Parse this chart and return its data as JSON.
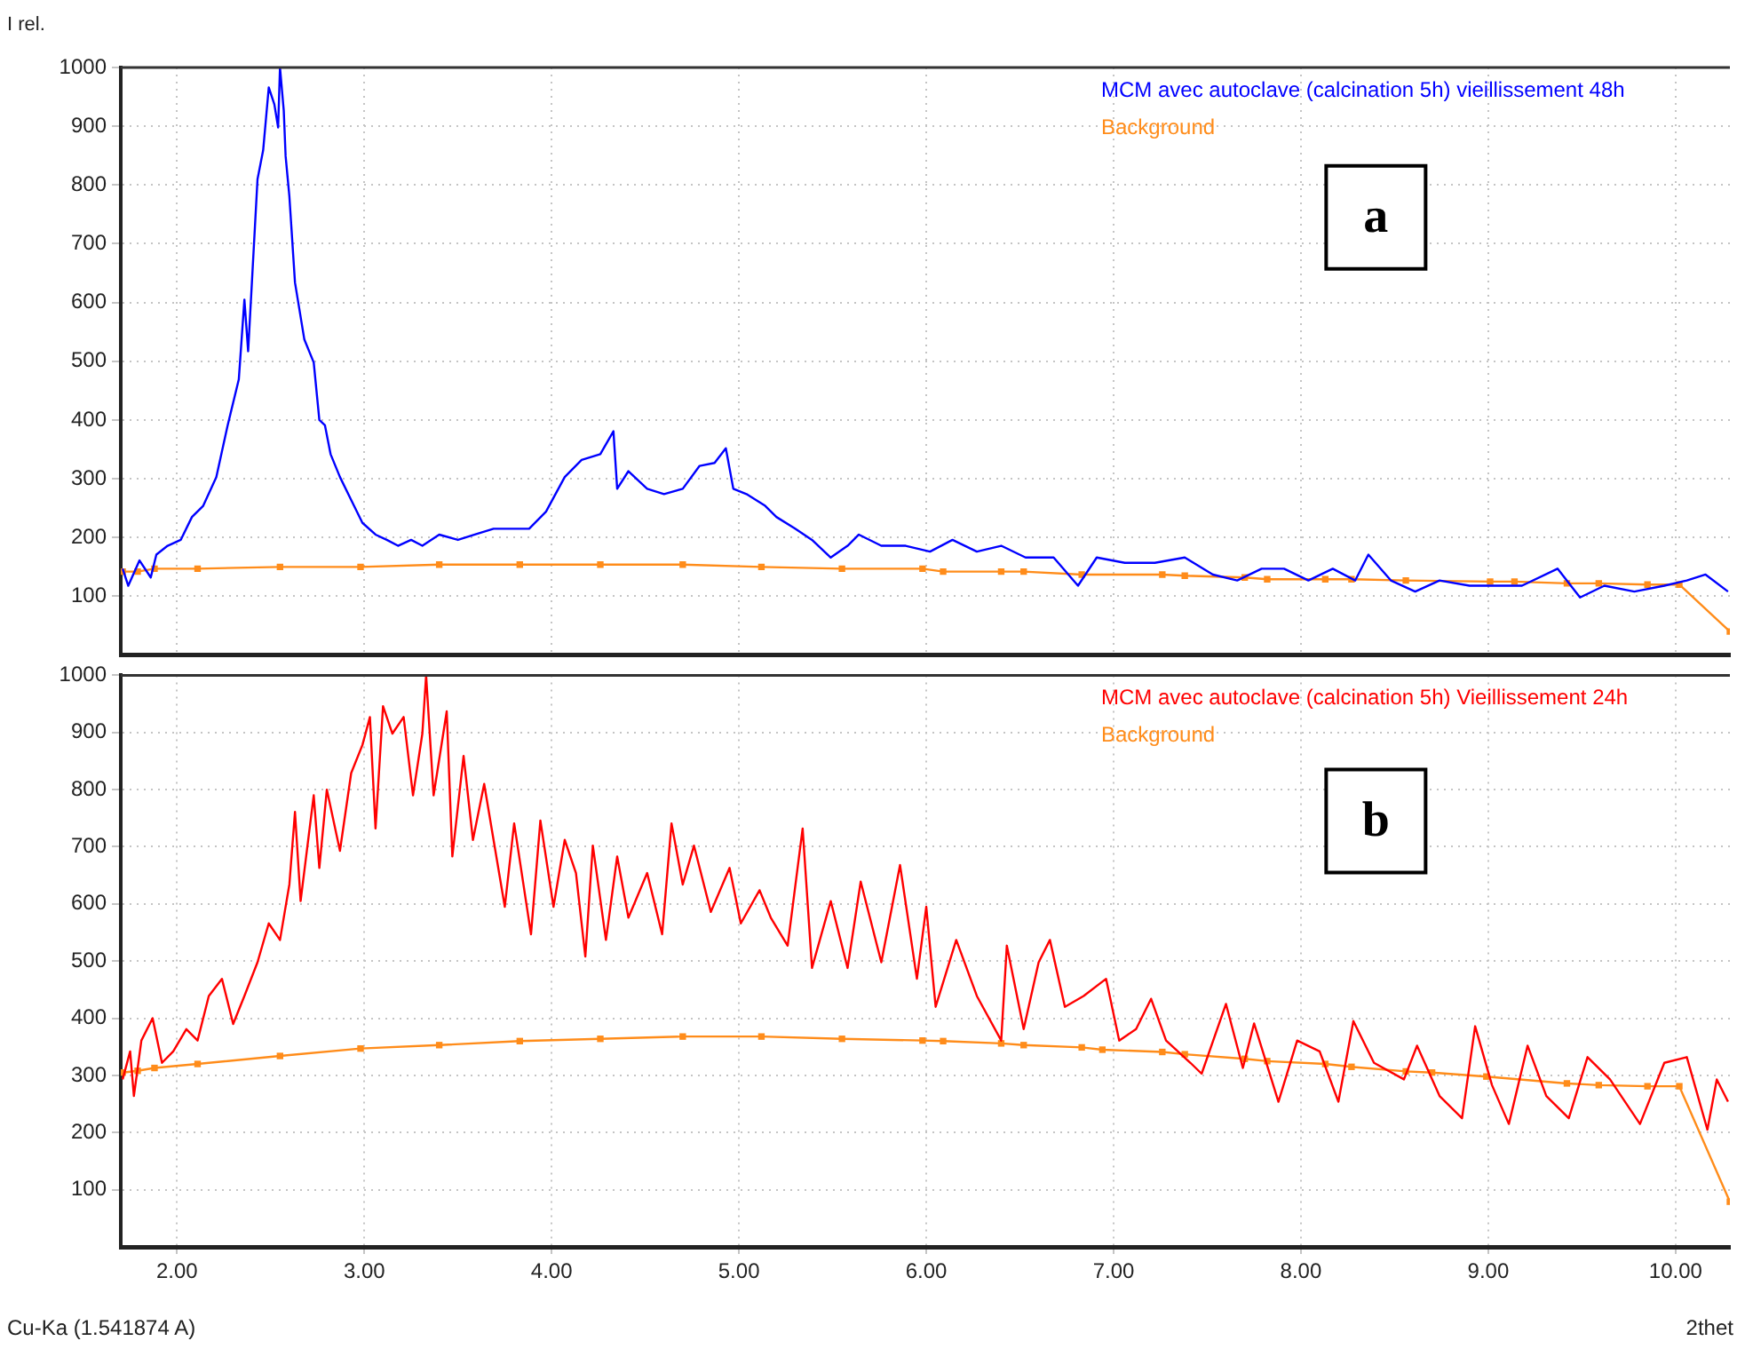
{
  "chart_data": [
    {
      "type": "line",
      "title": "a",
      "ylabel": "I rel.",
      "legend": "top right",
      "grid": true,
      "tick_labels": "y",
      "xlim": [
        1.7,
        10.29
      ],
      "ylim": [
        0,
        1000
      ],
      "xticks": [
        2,
        3,
        4,
        5,
        6,
        7,
        8,
        9,
        10
      ],
      "yticks": [
        100,
        200,
        300,
        400,
        500,
        600,
        700,
        800,
        900,
        1000
      ],
      "series": [
        {
          "name": "MCM avec autoclave (calcination 5h) vieillissement 48h",
          "color": "#0000ff",
          "marker": "none",
          "x": [
            1.71,
            1.74,
            1.8,
            1.86,
            1.89,
            1.95,
            2.02,
            2.08,
            2.14,
            2.21,
            2.27,
            2.33,
            2.36,
            2.38,
            2.43,
            2.46,
            2.49,
            2.52,
            2.54,
            2.55,
            2.57,
            2.58,
            2.6,
            2.63,
            2.68,
            2.73,
            2.76,
            2.79,
            2.82,
            2.87,
            2.93,
            2.99,
            3.06,
            3.12,
            3.18,
            3.25,
            3.31,
            3.4,
            3.5,
            3.59,
            3.69,
            3.78,
            3.88,
            3.97,
            4.07,
            4.16,
            4.26,
            4.33,
            4.35,
            4.41,
            4.51,
            4.6,
            4.7,
            4.79,
            4.87,
            4.93,
            4.97,
            5.04,
            5.14,
            5.2,
            5.3,
            5.39,
            5.49,
            5.58,
            5.64,
            5.76,
            5.89,
            6.02,
            6.14,
            6.27,
            6.4,
            6.53,
            6.68,
            6.81,
            6.91,
            7.06,
            7.22,
            7.38,
            7.53,
            7.66,
            7.79,
            7.91,
            8.04,
            8.17,
            8.29,
            8.36,
            8.48,
            8.61,
            8.74,
            8.9,
            9.02,
            9.18,
            9.37,
            9.49,
            9.62,
            9.78,
            9.94,
            10.06,
            10.16,
            10.28
          ],
          "values": [
            147,
            118,
            161,
            132,
            171,
            186,
            196,
            235,
            254,
            303,
            390,
            469,
            605,
            517,
            810,
            859,
            966,
            937,
            898,
            1000,
            927,
            849,
            781,
            634,
            537,
            498,
            400,
            391,
            342,
            303,
            264,
            225,
            205,
            196,
            186,
            196,
            186,
            205,
            196,
            205,
            215,
            215,
            215,
            244,
            303,
            332,
            342,
            381,
            283,
            313,
            283,
            274,
            283,
            322,
            327,
            352,
            283,
            274,
            254,
            235,
            215,
            196,
            166,
            186,
            205,
            186,
            186,
            176,
            196,
            176,
            186,
            166,
            166,
            118,
            166,
            157,
            157,
            166,
            137,
            127,
            147,
            147,
            127,
            147,
            127,
            171,
            127,
            108,
            127,
            118,
            118,
            118,
            147,
            98,
            118,
            108,
            118,
            127,
            137,
            108
          ]
        },
        {
          "name": "Background",
          "color": "#ff8c1a",
          "marker": "square",
          "x": [
            1.71,
            1.79,
            1.88,
            2.11,
            2.55,
            2.98,
            3.4,
            3.83,
            4.26,
            4.7,
            5.12,
            5.55,
            5.98,
            6.09,
            6.4,
            6.52,
            6.83,
            7.26,
            7.38,
            7.7,
            7.82,
            8.13,
            8.27,
            8.56,
            9.01,
            9.14,
            9.42,
            9.59,
            9.85,
            10.02,
            10.29
          ],
          "values": [
            142,
            142,
            147,
            147,
            150,
            150,
            154,
            154,
            154,
            154,
            150,
            147,
            147,
            142,
            142,
            142,
            137,
            137,
            135,
            132,
            129,
            129,
            129,
            127,
            125,
            125,
            122,
            122,
            120,
            120,
            40
          ]
        }
      ]
    },
    {
      "type": "line",
      "title": "b",
      "xlabel": "2thet",
      "annotations": [
        "Cu-Ka (1.541874 A)"
      ],
      "legend": "top right",
      "grid": true,
      "xlim": [
        1.7,
        10.29
      ],
      "ylim": [
        0,
        1000
      ],
      "xticks": [
        {
          "value": 2,
          "label": "2.00"
        },
        {
          "value": 3,
          "label": "3.00"
        },
        {
          "value": 4,
          "label": "4.00"
        },
        {
          "value": 5,
          "label": "5.00"
        },
        {
          "value": 6,
          "label": "6.00"
        },
        {
          "value": 7,
          "label": "7.00"
        },
        {
          "value": 8,
          "label": "8.00"
        },
        {
          "value": 9,
          "label": "9.00"
        },
        {
          "value": 10,
          "label": "10.00"
        }
      ],
      "yticks": [
        100,
        200,
        300,
        400,
        500,
        600,
        700,
        800,
        900,
        1000
      ],
      "series": [
        {
          "name": "MCM avec autoclave (calcination 5h) Vieillissement 24h",
          "color": "#ff0000",
          "marker": "none",
          "x": [
            1.71,
            1.75,
            1.77,
            1.81,
            1.87,
            1.92,
            1.98,
            2.05,
            2.11,
            2.17,
            2.24,
            2.3,
            2.36,
            2.43,
            2.49,
            2.55,
            2.6,
            2.63,
            2.66,
            2.73,
            2.76,
            2.8,
            2.87,
            2.93,
            2.99,
            3.03,
            3.06,
            3.1,
            3.15,
            3.21,
            3.26,
            3.31,
            3.33,
            3.37,
            3.44,
            3.47,
            3.53,
            3.58,
            3.64,
            3.69,
            3.75,
            3.8,
            3.89,
            3.94,
            4.01,
            4.07,
            4.13,
            4.18,
            4.22,
            4.29,
            4.35,
            4.41,
            4.51,
            4.59,
            4.64,
            4.7,
            4.76,
            4.85,
            4.95,
            5.01,
            5.11,
            5.17,
            5.26,
            5.34,
            5.39,
            5.49,
            5.58,
            5.65,
            5.76,
            5.86,
            5.95,
            6.0,
            6.05,
            6.16,
            6.27,
            6.4,
            6.43,
            6.52,
            6.6,
            6.66,
            6.74,
            6.84,
            6.96,
            7.03,
            7.12,
            7.2,
            7.28,
            7.41,
            7.47,
            7.6,
            7.69,
            7.75,
            7.88,
            7.98,
            8.1,
            8.2,
            8.28,
            8.39,
            8.55,
            8.62,
            8.74,
            8.86,
            8.93,
            9.02,
            9.11,
            9.21,
            9.31,
            9.43,
            9.53,
            9.65,
            9.81,
            9.94,
            10.06,
            10.17,
            10.22,
            10.28
          ],
          "values": [
            293,
            342,
            264,
            361,
            400,
            322,
            342,
            381,
            361,
            439,
            469,
            390,
            439,
            498,
            566,
            537,
            634,
            761,
            605,
            790,
            663,
            800,
            693,
            829,
            878,
            927,
            732,
            946,
            898,
            927,
            790,
            898,
            1000,
            790,
            937,
            683,
            859,
            712,
            810,
            712,
            595,
            741,
            547,
            746,
            595,
            712,
            654,
            508,
            702,
            537,
            683,
            576,
            654,
            547,
            741,
            634,
            702,
            586,
            663,
            566,
            624,
            576,
            527,
            732,
            488,
            605,
            488,
            639,
            498,
            668,
            469,
            595,
            420,
            537,
            439,
            361,
            527,
            381,
            498,
            537,
            420,
            439,
            469,
            361,
            381,
            434,
            361,
            322,
            303,
            425,
            313,
            391,
            254,
            361,
            342,
            254,
            395,
            322,
            293,
            352,
            264,
            225,
            386,
            283,
            215,
            352,
            264,
            225,
            332,
            293,
            215,
            322,
            332,
            205,
            293,
            254
          ]
        },
        {
          "name": "Background",
          "color": "#ff8c1a",
          "marker": "square",
          "x": [
            1.71,
            1.79,
            1.88,
            2.11,
            2.55,
            2.98,
            3.4,
            3.83,
            4.26,
            4.7,
            5.12,
            5.55,
            5.98,
            6.09,
            6.4,
            6.52,
            6.83,
            6.94,
            7.26,
            7.38,
            7.7,
            7.82,
            8.13,
            8.27,
            8.56,
            8.7,
            8.99,
            9.42,
            9.59,
            9.85,
            10.02,
            10.29
          ],
          "values": [
            305,
            308,
            313,
            320,
            334,
            347,
            353,
            360,
            364,
            368,
            368,
            364,
            361,
            360,
            356,
            353,
            349,
            345,
            341,
            337,
            329,
            325,
            320,
            315,
            307,
            305,
            298,
            286,
            283,
            281,
            281,
            79
          ]
        }
      ]
    }
  ]
}
